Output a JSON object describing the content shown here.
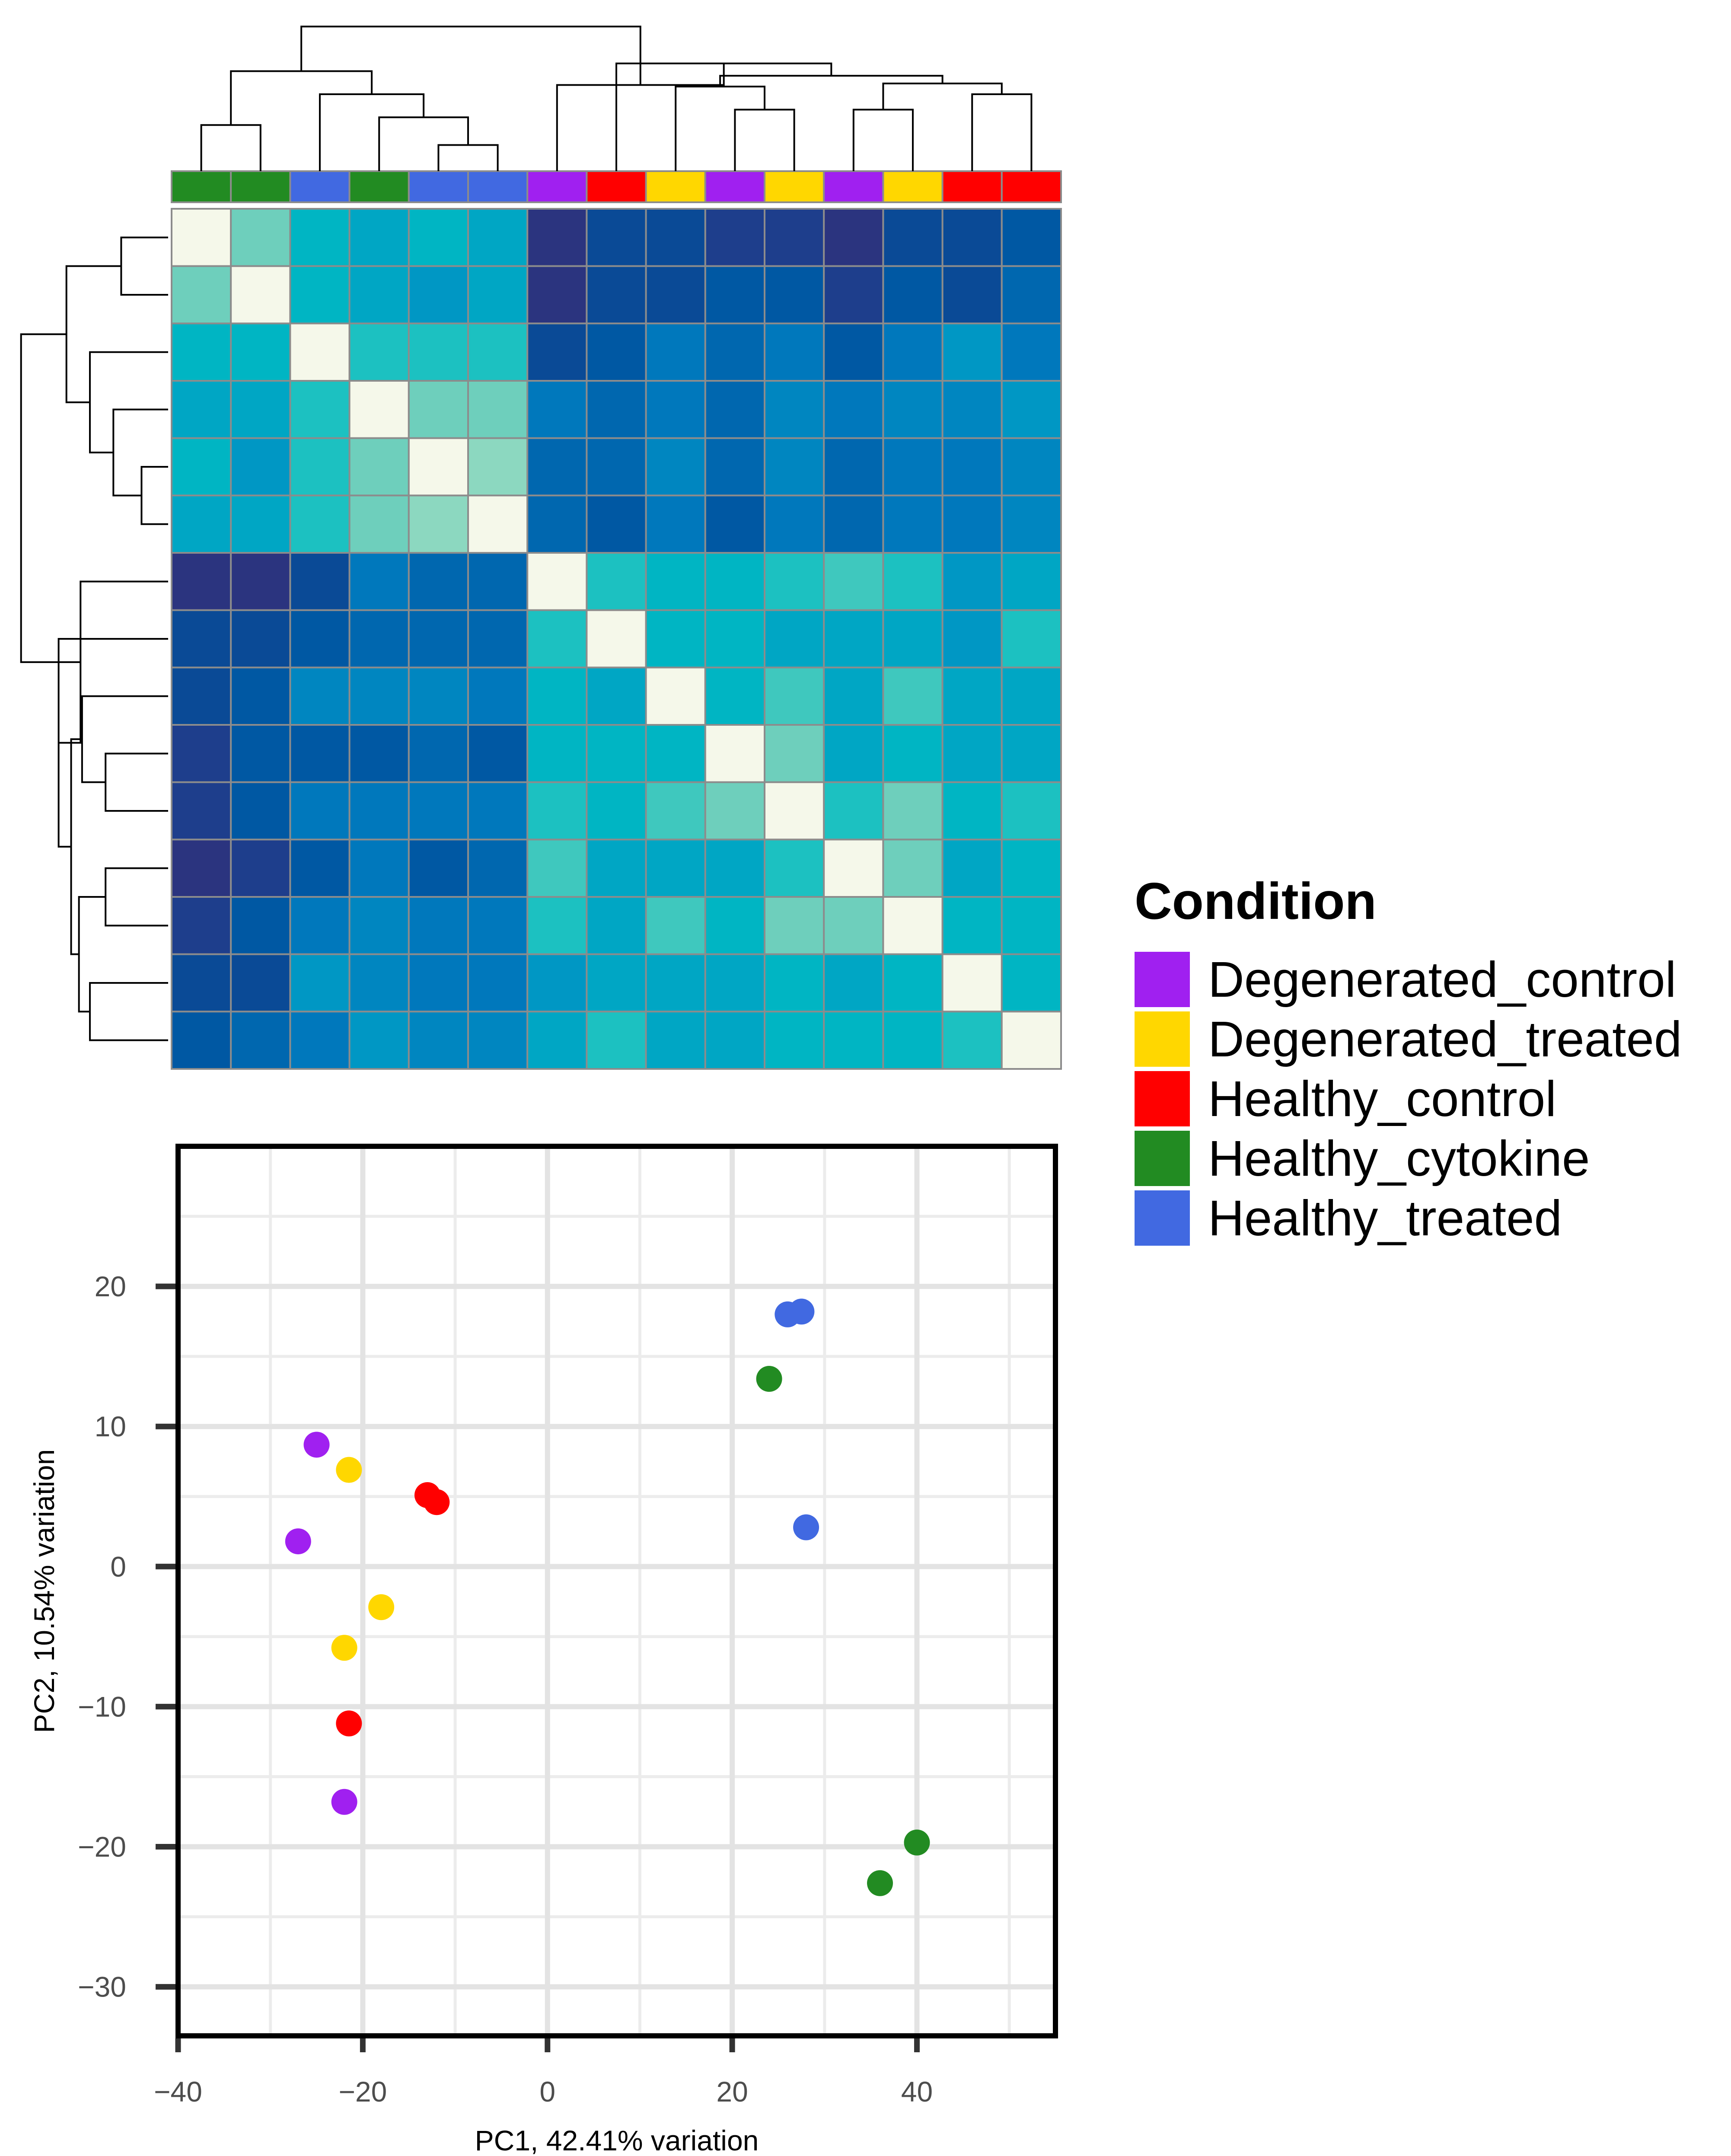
{
  "legend": {
    "title": "Condition",
    "items": [
      {
        "label": "Degenerated_control",
        "color": "#A020F0"
      },
      {
        "label": "Degenerated_treated",
        "color": "#FFD700"
      },
      {
        "label": "Healthy_control",
        "color": "#FF0000"
      },
      {
        "label": "Healthy_cytokine",
        "color": "#228B22"
      },
      {
        "label": "Healthy_treated",
        "color": "#4169E1"
      }
    ]
  },
  "chart_data": [
    {
      "type": "heatmap",
      "title": "",
      "description_of_scale": "sample-to-sample distance; diagonal is lightest",
      "palette": [
        "#F5F8EA",
        "#B4E6CC",
        "#8CD8C0",
        "#6ECFBC",
        "#3FC8BE",
        "#1CC1C1",
        "#00B5C3",
        "#00A6C4",
        "#0097C4",
        "#0086C0",
        "#0078BC",
        "#0067AF",
        "#0058A3",
        "#0A4A96",
        "#1E3E8C",
        "#2B347F"
      ],
      "column_conditions": [
        "Healthy_cytokine",
        "Healthy_cytokine",
        "Healthy_treated",
        "Healthy_cytokine",
        "Healthy_treated",
        "Healthy_treated",
        "Degenerated_control",
        "Healthy_control",
        "Degenerated_treated",
        "Degenerated_control",
        "Degenerated_treated",
        "Degenerated_control",
        "Degenerated_treated",
        "Healthy_control",
        "Healthy_control"
      ],
      "matrix": [
        [
          0,
          3,
          6,
          7,
          6,
          7,
          15,
          13,
          13,
          14,
          14,
          15,
          13,
          13,
          12
        ],
        [
          3,
          0,
          6,
          7,
          8,
          7,
          15,
          13,
          13,
          12,
          12,
          14,
          12,
          13,
          11
        ],
        [
          6,
          6,
          0,
          5,
          5,
          5,
          13,
          12,
          10,
          11,
          10,
          12,
          10,
          8,
          10
        ],
        [
          7,
          7,
          5,
          0,
          3,
          3,
          10,
          11,
          10,
          11,
          9,
          10,
          9,
          9,
          8
        ],
        [
          6,
          8,
          5,
          3,
          0,
          2,
          11,
          11,
          9,
          11,
          9,
          11,
          10,
          10,
          9
        ],
        [
          7,
          7,
          5,
          3,
          2,
          0,
          11,
          12,
          10,
          12,
          10,
          11,
          10,
          10,
          9
        ],
        [
          15,
          15,
          13,
          10,
          11,
          11,
          0,
          5,
          6,
          6,
          5,
          4,
          5,
          8,
          7
        ],
        [
          13,
          13,
          12,
          11,
          11,
          11,
          5,
          0,
          6,
          6,
          7,
          7,
          7,
          8,
          5
        ],
        [
          13,
          12,
          9,
          9,
          9,
          10,
          6,
          7,
          0,
          6,
          4,
          7,
          4,
          7,
          7
        ],
        [
          14,
          12,
          12,
          12,
          11,
          12,
          6,
          6,
          6,
          0,
          3,
          7,
          6,
          7,
          7
        ],
        [
          14,
          12,
          10,
          10,
          10,
          10,
          5,
          6,
          4,
          3,
          0,
          5,
          3,
          6,
          5
        ],
        [
          15,
          14,
          12,
          10,
          12,
          11,
          4,
          7,
          7,
          7,
          5,
          0,
          3,
          7,
          6
        ],
        [
          14,
          12,
          10,
          9,
          10,
          10,
          5,
          7,
          4,
          6,
          3,
          3,
          0,
          6,
          6
        ],
        [
          13,
          13,
          8,
          9,
          10,
          10,
          8,
          7,
          7,
          7,
          6,
          7,
          6,
          0,
          6
        ],
        [
          12,
          11,
          10,
          8,
          9,
          9,
          7,
          5,
          7,
          7,
          6,
          6,
          6,
          5,
          0
        ]
      ]
    },
    {
      "type": "scatter",
      "title": "",
      "xlabel": "PC1, 42.41% variation",
      "ylabel": "PC2, 10.54% variation",
      "xlim": [
        -40,
        55
      ],
      "ylim": [
        -33.5,
        30
      ],
      "xticks": [
        -40,
        -20,
        0,
        20,
        40
      ],
      "xtick_labels": [
        "−40",
        "−20",
        "0",
        "20",
        "40"
      ],
      "yticks": [
        -30,
        -20,
        -10,
        0,
        10,
        20
      ],
      "ytick_labels": [
        "−30",
        "−20",
        "−10",
        "0",
        "10",
        "20"
      ],
      "grid": true,
      "series": [
        {
          "name": "Degenerated_control",
          "points": [
            [
              -25.0,
              8.7
            ],
            [
              -27.0,
              1.8
            ],
            [
              -22.0,
              -16.8
            ]
          ]
        },
        {
          "name": "Degenerated_treated",
          "points": [
            [
              -21.5,
              6.9
            ],
            [
              -18.0,
              -2.9
            ],
            [
              -22.0,
              -5.8
            ]
          ]
        },
        {
          "name": "Healthy_control",
          "points": [
            [
              -13.0,
              5.1
            ],
            [
              -12.0,
              4.6
            ],
            [
              -21.5,
              -11.2
            ]
          ]
        },
        {
          "name": "Healthy_cytokine",
          "points": [
            [
              24.0,
              13.4
            ],
            [
              40.0,
              -19.7
            ],
            [
              36.0,
              -22.6
            ]
          ]
        },
        {
          "name": "Healthy_treated",
          "points": [
            [
              26.0,
              18.0
            ],
            [
              27.5,
              18.2
            ],
            [
              28.0,
              2.8
            ]
          ]
        }
      ]
    }
  ]
}
